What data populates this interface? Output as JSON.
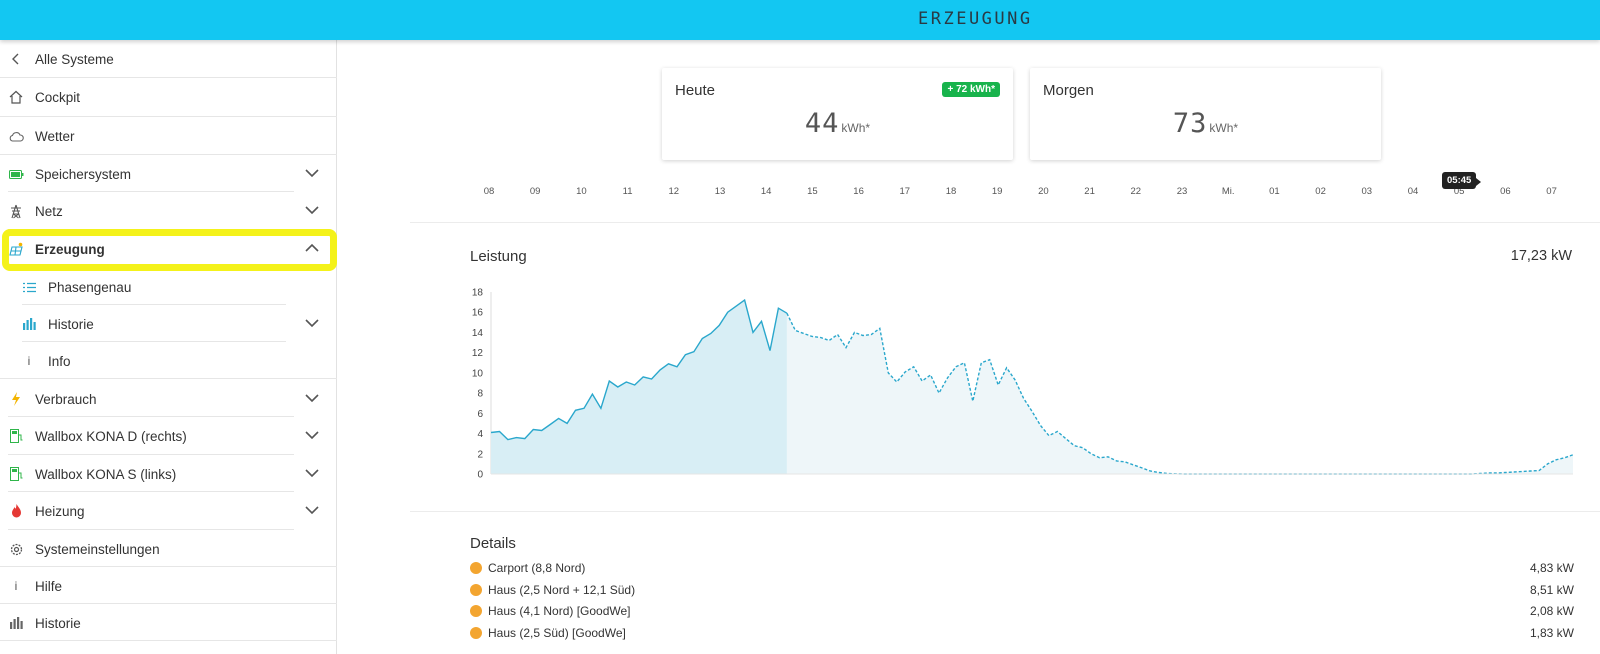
{
  "header": {
    "title": "ERZEUGUNG"
  },
  "sidebar": {
    "back": "Alle Systeme",
    "items": [
      {
        "label": "Cockpit",
        "icon": "home-icon"
      },
      {
        "label": "Wetter",
        "icon": "cloud-icon"
      },
      {
        "label": "Speichersystem",
        "icon": "battery-icon",
        "expandable": true
      },
      {
        "label": "Netz",
        "icon": "power-tower-icon",
        "expandable": true
      },
      {
        "label": "Erzeugung",
        "icon": "solar-panel-icon",
        "expandable": true,
        "expanded": true
      },
      {
        "label": "Phasengenau",
        "icon": "list-icon",
        "sub": true
      },
      {
        "label": "Historie",
        "icon": "bar-chart-icon",
        "sub": true,
        "expandable": true
      },
      {
        "label": "Info",
        "icon": "info-icon",
        "sub": true
      },
      {
        "label": "Verbrauch",
        "icon": "lightning-icon",
        "expandable": true
      },
      {
        "label": "Wallbox KONA D (rechts)",
        "icon": "ev-charger-icon",
        "expandable": true
      },
      {
        "label": "Wallbox KONA S (links)",
        "icon": "ev-charger-icon",
        "expandable": true
      },
      {
        "label": "Heizung",
        "icon": "flame-icon",
        "expandable": true
      },
      {
        "label": "Systemeinstellungen",
        "icon": "settings-icon"
      },
      {
        "label": "Hilfe",
        "icon": "info-icon"
      },
      {
        "label": "Historie",
        "icon": "bar-chart-icon"
      }
    ]
  },
  "cards": {
    "today": {
      "title": "Heute",
      "value": "44",
      "unit": "kWh*",
      "badge": "+ 72 kWh*"
    },
    "tomorrow": {
      "title": "Morgen",
      "value": "73",
      "unit": "kWh*"
    }
  },
  "timeline": {
    "hours": [
      "08",
      "09",
      "10",
      "11",
      "12",
      "13",
      "14",
      "15",
      "16",
      "17",
      "18",
      "19",
      "20",
      "21",
      "22",
      "23",
      "Mi.",
      "01",
      "02",
      "03",
      "04",
      "05",
      "06",
      "07"
    ],
    "tooltip": "05:45"
  },
  "power": {
    "title": "Leistung",
    "value": "17,23 kW"
  },
  "chart_data": {
    "type": "area",
    "ylim": [
      0,
      18
    ],
    "yticks": [
      "18",
      "16",
      "14",
      "12",
      "10",
      "8",
      "6",
      "4",
      "2",
      "0"
    ],
    "actual": [
      4.1,
      4.2,
      3.4,
      3.6,
      3.5,
      4.4,
      4.3,
      4.9,
      5.5,
      5.0,
      6.3,
      6.5,
      7.9,
      6.5,
      9.2,
      8.6,
      9.1,
      8.8,
      9.6,
      9.4,
      10.3,
      10.9,
      10.6,
      11.8,
      12.1,
      13.4,
      13.9,
      14.7,
      16.0,
      16.6,
      17.2,
      14.0,
      15.1,
      12.2,
      16.4,
      15.9
    ],
    "forecast": [
      15.9,
      14.2,
      13.9,
      13.6,
      13.5,
      13.2,
      13.8,
      12.5,
      14.0,
      13.7,
      13.8,
      14.4,
      10.0,
      9.1,
      10.1,
      10.6,
      9.2,
      9.8,
      8.0,
      9.5,
      10.6,
      11.0,
      7.2,
      11.0,
      11.3,
      8.8,
      10.5,
      9.3,
      7.5,
      6.2,
      4.8,
      3.8,
      4.2,
      3.5,
      2.8,
      2.6,
      2.0,
      1.6,
      1.7,
      1.3,
      1.2,
      0.9,
      0.6,
      0.3,
      0.15,
      0.05,
      0.02,
      0.0,
      0.0,
      0.0,
      0.0,
      0.0,
      0.0,
      0.0,
      0.0,
      0.0,
      0.0,
      0.0,
      0.0,
      0.0,
      0.0,
      0.0,
      0.0,
      0.0,
      0.0,
      0.0,
      0.0,
      0.0,
      0.0,
      0.0,
      0.0,
      0.0,
      0.0,
      0.0,
      0.0,
      0.0,
      0.0,
      0.0,
      0.0,
      0.0,
      0.0,
      0.0,
      0.05,
      0.1,
      0.1,
      0.15,
      0.2,
      0.25,
      0.3,
      0.35,
      1.0,
      1.4,
      1.6,
      1.9
    ],
    "colors": {
      "line": "#2aa7cc",
      "actual_fill": "#d8eef5",
      "forecast_fill": "#eef6f9"
    }
  },
  "details": {
    "title": "Details",
    "rows": [
      {
        "label": "Carport (8,8 Nord)",
        "value": "4,83 kW"
      },
      {
        "label": "Haus (2,5 Nord + 12,1 Süd)",
        "value": "8,51 kW"
      },
      {
        "label": "Haus (4,1 Nord) [GoodWe]",
        "value": "2,08 kW"
      },
      {
        "label": "Haus (2,5 Süd) [GoodWe]",
        "value": "1,83 kW"
      }
    ]
  }
}
